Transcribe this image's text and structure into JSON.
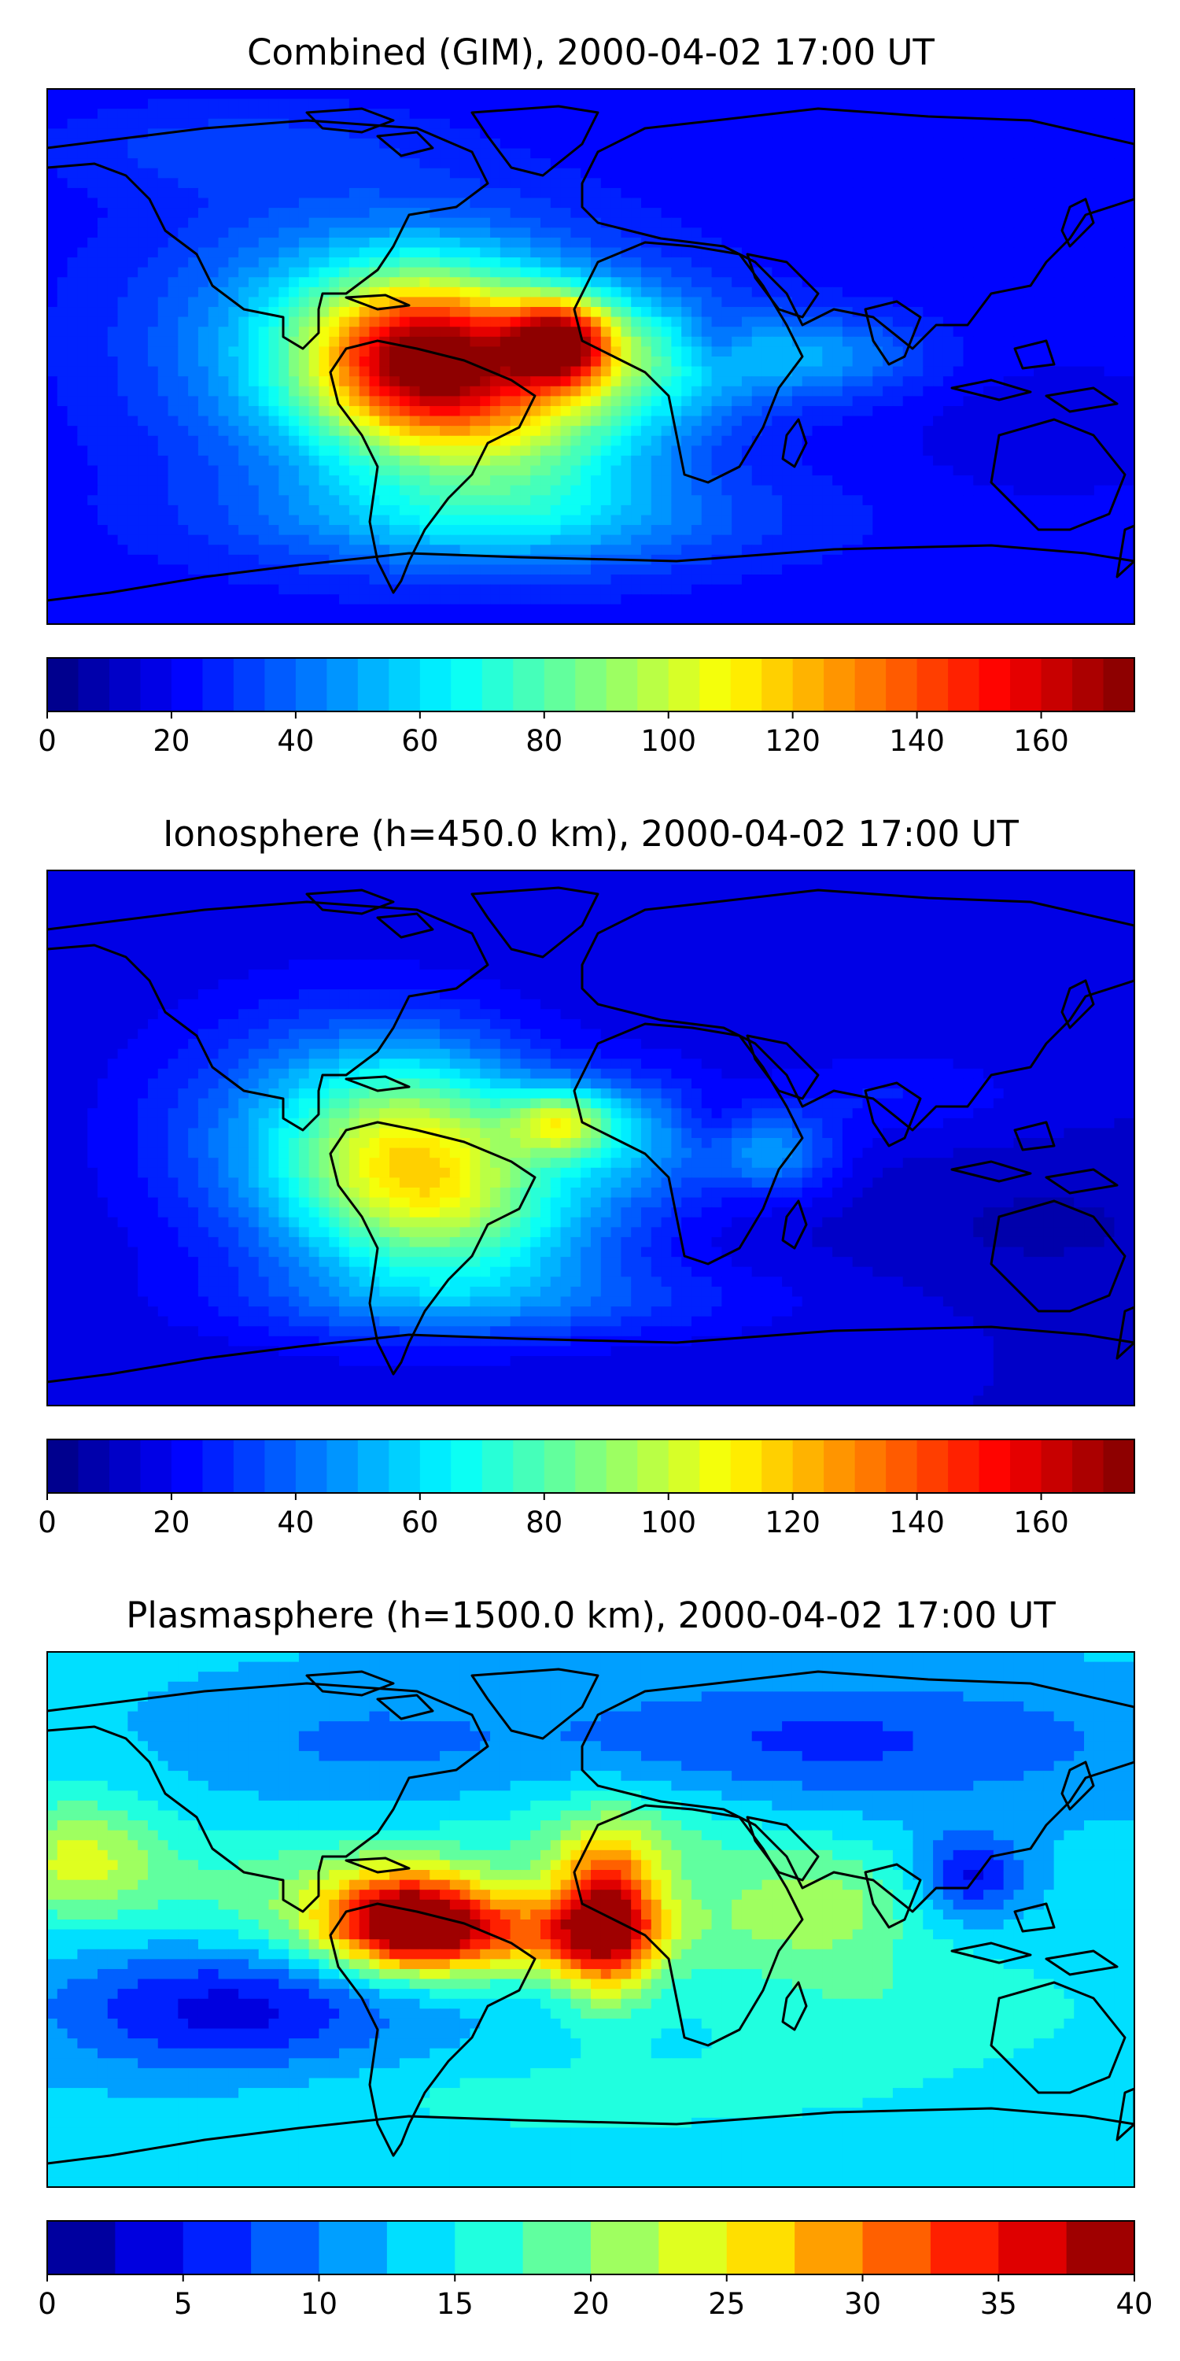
{
  "chart_data": [
    {
      "type": "heatmap",
      "title": "Combined (GIM), 2000-04-02 17:00 UT",
      "xlabel": "",
      "ylabel": "",
      "colormap": "jet",
      "colorbar": {
        "range": [
          0,
          175
        ],
        "levels": 35,
        "ticks": [
          0,
          20,
          40,
          60,
          80,
          100,
          120,
          140,
          160
        ],
        "tick_labels": [
          "0",
          "20",
          "40",
          "60",
          "80",
          "100",
          "120",
          "140",
          "160"
        ]
      },
      "field": {
        "background": 22,
        "blobs": [
          {
            "lon": -10,
            "lat": 5,
            "sx": 12,
            "sy": 10,
            "amp": 95
          },
          {
            "lon": -55,
            "lat": 0,
            "sx": 25,
            "sy": 18,
            "amp": 88
          },
          {
            "lon": -35,
            "lat": -10,
            "sx": 40,
            "sy": 28,
            "amp": 50
          },
          {
            "lon": -80,
            "lat": 5,
            "sx": 45,
            "sy": 30,
            "amp": 35
          },
          {
            "lon": 20,
            "lat": 0,
            "sx": 25,
            "sy": 15,
            "amp": 30
          },
          {
            "lon": -20,
            "lat": -25,
            "sx": 30,
            "sy": 20,
            "amp": 20
          },
          {
            "lon": -30,
            "lat": -55,
            "sx": 60,
            "sy": 12,
            "amp": 25
          },
          {
            "lon": 40,
            "lat": 5,
            "sx": 8,
            "sy": 8,
            "amp": -15
          },
          {
            "lon": 75,
            "lat": 0,
            "sx": 25,
            "sy": 10,
            "amp": 25
          },
          {
            "lon": 150,
            "lat": -25,
            "sx": 30,
            "sy": 15,
            "amp": -6
          },
          {
            "lon": -120,
            "lat": 70,
            "sx": 40,
            "sy": 10,
            "amp": 10
          }
        ]
      }
    },
    {
      "type": "heatmap",
      "title": "Ionosphere  (h=450.0 km), 2000-04-02 17:00 UT",
      "xlabel": "",
      "ylabel": "",
      "colormap": "jet",
      "colorbar": {
        "range": [
          0,
          175
        ],
        "levels": 35,
        "ticks": [
          0,
          20,
          40,
          60,
          80,
          100,
          120,
          140,
          160
        ],
        "tick_labels": [
          "0",
          "20",
          "40",
          "60",
          "80",
          "100",
          "120",
          "140",
          "160"
        ]
      },
      "field": {
        "background": 15,
        "blobs": [
          {
            "lon": -10,
            "lat": 5,
            "sx": 12,
            "sy": 8,
            "amp": 55
          },
          {
            "lon": -55,
            "lat": -10,
            "sx": 30,
            "sy": 25,
            "amp": 80
          },
          {
            "lon": -90,
            "lat": 0,
            "sx": 40,
            "sy": 30,
            "amp": 30
          },
          {
            "lon": 15,
            "lat": 0,
            "sx": 20,
            "sy": 15,
            "amp": 30
          },
          {
            "lon": -20,
            "lat": -30,
            "sx": 30,
            "sy": 15,
            "amp": 20
          },
          {
            "lon": -30,
            "lat": -55,
            "sx": 60,
            "sy": 10,
            "amp": 20
          },
          {
            "lon": 40,
            "lat": 5,
            "sx": 8,
            "sy": 8,
            "amp": -10
          },
          {
            "lon": 60,
            "lat": -5,
            "sx": 15,
            "sy": 10,
            "amp": 30
          },
          {
            "lon": 100,
            "lat": 15,
            "sx": 30,
            "sy": 10,
            "amp": 10
          },
          {
            "lon": 150,
            "lat": -30,
            "sx": 40,
            "sy": 15,
            "amp": -6
          }
        ]
      }
    },
    {
      "type": "heatmap",
      "title": "Plasmasphere (h=1500.0 km), 2000-04-02 17:00 UT",
      "xlabel": "",
      "ylabel": "",
      "colormap": "jet",
      "colorbar": {
        "range": [
          0,
          40
        ],
        "levels": 16,
        "ticks": [
          0,
          5,
          10,
          15,
          20,
          25,
          30,
          35,
          40
        ],
        "tick_labels": [
          "0",
          "5",
          "10",
          "15",
          "20",
          "25",
          "30",
          "35",
          "40"
        ]
      },
      "field": {
        "background": 13,
        "blobs": [
          {
            "lon": 5,
            "lat": 0,
            "sx": 12,
            "sy": 18,
            "amp": 21
          },
          {
            "lon": -60,
            "lat": 0,
            "sx": 18,
            "sy": 12,
            "amp": 20
          },
          {
            "lon": -30,
            "lat": -5,
            "sx": 40,
            "sy": 10,
            "amp": 14
          },
          {
            "lon": -90,
            "lat": 10,
            "sx": 40,
            "sy": 15,
            "amp": 6
          },
          {
            "lon": -170,
            "lat": 20,
            "sx": 20,
            "sy": 15,
            "amp": 10
          },
          {
            "lon": 10,
            "lat": 25,
            "sx": 30,
            "sy": 15,
            "amp": 6
          },
          {
            "lon": 75,
            "lat": 5,
            "sx": 25,
            "sy": 15,
            "amp": 8
          },
          {
            "lon": 125,
            "lat": 15,
            "sx": 12,
            "sy": 10,
            "amp": -9
          },
          {
            "lon": -120,
            "lat": -30,
            "sx": 40,
            "sy": 15,
            "amp": -9
          },
          {
            "lon": -80,
            "lat": 60,
            "sx": 40,
            "sy": 15,
            "amp": -3
          },
          {
            "lon": 80,
            "lat": 60,
            "sx": 70,
            "sy": 15,
            "amp": -6
          },
          {
            "lon": 100,
            "lat": -30,
            "sx": 50,
            "sy": 15,
            "amp": 4
          },
          {
            "lon": 0,
            "lat": -60,
            "sx": 80,
            "sy": 10,
            "amp": 3
          }
        ]
      }
    }
  ]
}
